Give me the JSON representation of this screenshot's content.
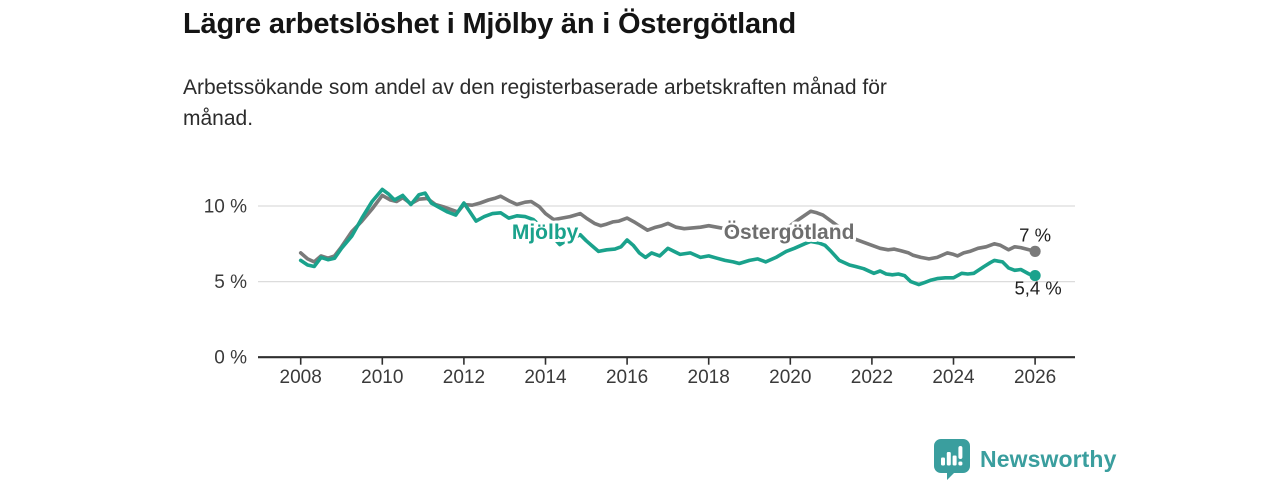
{
  "chart_data": {
    "type": "line",
    "title": "Lägre arbetslöshet i Mjölby än i Östergötland",
    "subtitle": "Arbetssökande som andel av den registerbaserade arbetskraften månad för månad.",
    "subtitle_lines": [
      "Arbetssökande som andel av den registerbaserade arbetskraften månad för",
      "månad."
    ],
    "unit": "%",
    "grid": true,
    "legend_position": "inline-labels",
    "x_axis": {
      "range": [
        2008,
        2026.1
      ],
      "ticks": [
        {
          "value": 2008,
          "label": "2008"
        },
        {
          "value": 2010,
          "label": "2010"
        },
        {
          "value": 2012,
          "label": "2012"
        },
        {
          "value": 2014,
          "label": "2014"
        },
        {
          "value": 2016,
          "label": "2016"
        },
        {
          "value": 2018,
          "label": "2018"
        },
        {
          "value": 2020,
          "label": "2020"
        },
        {
          "value": 2022,
          "label": "2022"
        },
        {
          "value": 2024,
          "label": "2024"
        },
        {
          "value": 2026,
          "label": "2026"
        }
      ]
    },
    "y_axis": {
      "range": [
        0,
        11.7
      ],
      "ticks": [
        {
          "value": 0,
          "label": "0 %"
        },
        {
          "value": 5,
          "label": "5 %"
        },
        {
          "value": 10,
          "label": "10 %"
        }
      ]
    },
    "colors": {
      "grid": "#dcdcdc",
      "axis": "#2f2f2f",
      "tick_label": "#3a3a3a",
      "end_label": "#1f1f1f"
    },
    "series": [
      {
        "id": "ostergotland",
        "name": "Östergötland",
        "color": "#7a7a7a",
        "label_color": "#6e6e6e",
        "label_anchor": [
          2019.97,
          8.35
        ],
        "end_label": "7 %",
        "end_value": 7.0,
        "end_label_offset": [
          0,
          -10
        ],
        "points": [
          [
            2008.0,
            6.9
          ],
          [
            2008.17,
            6.5
          ],
          [
            2008.33,
            6.3
          ],
          [
            2008.5,
            6.7
          ],
          [
            2008.67,
            6.55
          ],
          [
            2008.83,
            6.7
          ],
          [
            2009.0,
            7.3
          ],
          [
            2009.25,
            8.3
          ],
          [
            2009.5,
            9.0
          ],
          [
            2009.75,
            9.8
          ],
          [
            2010.0,
            10.7
          ],
          [
            2010.2,
            10.4
          ],
          [
            2010.35,
            10.3
          ],
          [
            2010.5,
            10.55
          ],
          [
            2010.7,
            10.15
          ],
          [
            2010.9,
            10.45
          ],
          [
            2011.1,
            10.5
          ],
          [
            2011.3,
            10.1
          ],
          [
            2011.5,
            9.95
          ],
          [
            2011.7,
            9.75
          ],
          [
            2011.85,
            9.6
          ],
          [
            2012.0,
            10.1
          ],
          [
            2012.2,
            10.05
          ],
          [
            2012.4,
            10.2
          ],
          [
            2012.6,
            10.4
          ],
          [
            2012.75,
            10.5
          ],
          [
            2012.9,
            10.65
          ],
          [
            2013.1,
            10.35
          ],
          [
            2013.3,
            10.1
          ],
          [
            2013.5,
            10.25
          ],
          [
            2013.65,
            10.3
          ],
          [
            2013.85,
            9.95
          ],
          [
            2014.0,
            9.5
          ],
          [
            2014.2,
            9.1
          ],
          [
            2014.4,
            9.2
          ],
          [
            2014.6,
            9.3
          ],
          [
            2014.85,
            9.5
          ],
          [
            2015.0,
            9.2
          ],
          [
            2015.2,
            8.85
          ],
          [
            2015.35,
            8.7
          ],
          [
            2015.5,
            8.8
          ],
          [
            2015.65,
            8.95
          ],
          [
            2015.8,
            9.0
          ],
          [
            2016.0,
            9.2
          ],
          [
            2016.2,
            8.9
          ],
          [
            2016.5,
            8.4
          ],
          [
            2016.7,
            8.6
          ],
          [
            2016.85,
            8.7
          ],
          [
            2017.0,
            8.85
          ],
          [
            2017.2,
            8.6
          ],
          [
            2017.4,
            8.5
          ],
          [
            2017.6,
            8.55
          ],
          [
            2017.8,
            8.6
          ],
          [
            2018.0,
            8.7
          ],
          [
            2018.2,
            8.6
          ],
          [
            2018.4,
            8.5
          ],
          [
            2018.6,
            8.4
          ],
          [
            2018.8,
            8.3
          ],
          [
            2019.0,
            8.3
          ],
          [
            2019.2,
            8.2
          ],
          [
            2019.4,
            8.3
          ],
          [
            2019.6,
            8.4
          ],
          [
            2019.8,
            8.5
          ],
          [
            2020.0,
            8.7
          ],
          [
            2020.2,
            9.1
          ],
          [
            2020.5,
            9.65
          ],
          [
            2020.65,
            9.55
          ],
          [
            2020.8,
            9.4
          ],
          [
            2021.0,
            9.0
          ],
          [
            2021.2,
            8.6
          ],
          [
            2021.4,
            8.1
          ],
          [
            2021.6,
            7.8
          ],
          [
            2021.8,
            7.6
          ],
          [
            2022.0,
            7.4
          ],
          [
            2022.2,
            7.2
          ],
          [
            2022.4,
            7.1
          ],
          [
            2022.55,
            7.15
          ],
          [
            2022.7,
            7.05
          ],
          [
            2022.9,
            6.9
          ],
          [
            2023.0,
            6.75
          ],
          [
            2023.2,
            6.6
          ],
          [
            2023.4,
            6.5
          ],
          [
            2023.6,
            6.6
          ],
          [
            2023.85,
            6.9
          ],
          [
            2024.0,
            6.8
          ],
          [
            2024.1,
            6.7
          ],
          [
            2024.25,
            6.9
          ],
          [
            2024.4,
            7.0
          ],
          [
            2024.6,
            7.2
          ],
          [
            2024.8,
            7.3
          ],
          [
            2025.0,
            7.5
          ],
          [
            2025.15,
            7.4
          ],
          [
            2025.35,
            7.1
          ],
          [
            2025.5,
            7.3
          ],
          [
            2025.65,
            7.25
          ],
          [
            2025.85,
            7.1
          ],
          [
            2026.0,
            7.0
          ]
        ]
      },
      {
        "id": "mjolby",
        "name": "Mjölby",
        "color": "#1aa28c",
        "label_color": "#1aa28c",
        "label_anchor": [
          2013.99,
          8.35
        ],
        "end_label": "5,4 %",
        "end_value": 5.4,
        "end_label_offset": [
          3,
          19
        ],
        "points": [
          [
            2008.0,
            6.4
          ],
          [
            2008.17,
            6.1
          ],
          [
            2008.33,
            6.0
          ],
          [
            2008.5,
            6.6
          ],
          [
            2008.67,
            6.45
          ],
          [
            2008.83,
            6.55
          ],
          [
            2009.0,
            7.2
          ],
          [
            2009.25,
            8.0
          ],
          [
            2009.5,
            9.2
          ],
          [
            2009.75,
            10.3
          ],
          [
            2010.0,
            11.1
          ],
          [
            2010.15,
            10.8
          ],
          [
            2010.3,
            10.4
          ],
          [
            2010.5,
            10.7
          ],
          [
            2010.7,
            10.1
          ],
          [
            2010.9,
            10.75
          ],
          [
            2011.05,
            10.85
          ],
          [
            2011.2,
            10.2
          ],
          [
            2011.4,
            9.9
          ],
          [
            2011.6,
            9.6
          ],
          [
            2011.8,
            9.4
          ],
          [
            2012.0,
            10.2
          ],
          [
            2012.15,
            9.6
          ],
          [
            2012.3,
            9.0
          ],
          [
            2012.5,
            9.3
          ],
          [
            2012.7,
            9.5
          ],
          [
            2012.9,
            9.55
          ],
          [
            2013.1,
            9.2
          ],
          [
            2013.3,
            9.35
          ],
          [
            2013.5,
            9.3
          ],
          [
            2013.7,
            9.1
          ],
          [
            2013.9,
            8.6
          ],
          [
            2014.1,
            8.0
          ],
          [
            2014.25,
            7.75
          ],
          [
            2014.35,
            7.45
          ],
          [
            2014.5,
            7.7
          ],
          [
            2014.7,
            7.9
          ],
          [
            2014.85,
            8.1
          ],
          [
            2015.0,
            7.7
          ],
          [
            2015.15,
            7.35
          ],
          [
            2015.3,
            7.0
          ],
          [
            2015.5,
            7.1
          ],
          [
            2015.7,
            7.15
          ],
          [
            2015.85,
            7.3
          ],
          [
            2016.0,
            7.75
          ],
          [
            2016.15,
            7.4
          ],
          [
            2016.3,
            6.9
          ],
          [
            2016.45,
            6.6
          ],
          [
            2016.6,
            6.9
          ],
          [
            2016.8,
            6.7
          ],
          [
            2017.0,
            7.2
          ],
          [
            2017.15,
            7.0
          ],
          [
            2017.3,
            6.8
          ],
          [
            2017.55,
            6.9
          ],
          [
            2017.8,
            6.6
          ],
          [
            2018.0,
            6.7
          ],
          [
            2018.2,
            6.55
          ],
          [
            2018.4,
            6.4
          ],
          [
            2018.6,
            6.3
          ],
          [
            2018.75,
            6.2
          ],
          [
            2019.0,
            6.4
          ],
          [
            2019.2,
            6.5
          ],
          [
            2019.4,
            6.3
          ],
          [
            2019.65,
            6.6
          ],
          [
            2019.9,
            7.0
          ],
          [
            2020.1,
            7.2
          ],
          [
            2020.35,
            7.5
          ],
          [
            2020.5,
            7.65
          ],
          [
            2020.7,
            7.55
          ],
          [
            2020.85,
            7.4
          ],
          [
            2021.0,
            7.0
          ],
          [
            2021.2,
            6.4
          ],
          [
            2021.45,
            6.1
          ],
          [
            2021.6,
            6.0
          ],
          [
            2021.8,
            5.85
          ],
          [
            2022.05,
            5.55
          ],
          [
            2022.2,
            5.7
          ],
          [
            2022.35,
            5.5
          ],
          [
            2022.5,
            5.45
          ],
          [
            2022.65,
            5.5
          ],
          [
            2022.8,
            5.4
          ],
          [
            2022.95,
            5.0
          ],
          [
            2023.15,
            4.8
          ],
          [
            2023.3,
            4.95
          ],
          [
            2023.45,
            5.1
          ],
          [
            2023.6,
            5.2
          ],
          [
            2023.8,
            5.25
          ],
          [
            2024.0,
            5.25
          ],
          [
            2024.2,
            5.55
          ],
          [
            2024.35,
            5.5
          ],
          [
            2024.5,
            5.55
          ],
          [
            2024.75,
            6.0
          ],
          [
            2024.9,
            6.25
          ],
          [
            2025.0,
            6.4
          ],
          [
            2025.1,
            6.35
          ],
          [
            2025.2,
            6.3
          ],
          [
            2025.35,
            5.9
          ],
          [
            2025.5,
            5.75
          ],
          [
            2025.65,
            5.8
          ],
          [
            2025.85,
            5.5
          ],
          [
            2026.0,
            5.4
          ]
        ]
      }
    ]
  },
  "branding": {
    "logo_text": "Newsworthy",
    "logo_icon": "speech-bubble-bar-chart",
    "brand_color": "#3a9e9e"
  }
}
